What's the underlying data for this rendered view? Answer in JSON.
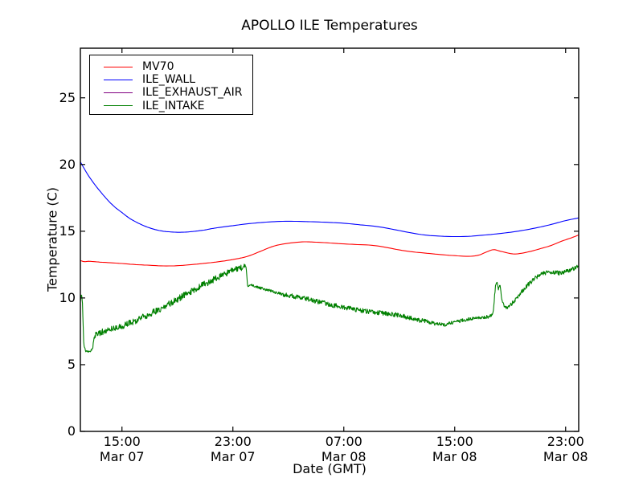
{
  "figure": {
    "background": "#ffffff",
    "axis_color": "#000000"
  },
  "chart_data": {
    "type": "line",
    "title": "APOLLO ILE Temperatures",
    "xlabel": "Date (GMT)",
    "ylabel": "Temperature (C)",
    "x_axis": {
      "unit": "hours-from-Mar-07-12:00-GMT",
      "range": [
        0,
        35.94
      ]
    },
    "y_axis": {
      "range": [
        0,
        28.7
      ],
      "grid": false
    },
    "yticks": {
      "values": [
        0,
        5,
        10,
        15,
        20,
        25
      ],
      "labels": [
        "0",
        "5",
        "10",
        "15",
        "20",
        "25"
      ]
    },
    "xticks": [
      {
        "t": 3,
        "time": "15:00",
        "date": "Mar 07"
      },
      {
        "t": 11,
        "time": "23:00",
        "date": "Mar 07"
      },
      {
        "t": 19,
        "time": "07:00",
        "date": "Mar 08"
      },
      {
        "t": 27,
        "time": "15:00",
        "date": "Mar 08"
      },
      {
        "t": 35,
        "time": "23:00",
        "date": "Mar 08"
      }
    ],
    "legend": {
      "position": "upper-left"
    },
    "series": [
      {
        "name": "MV70",
        "color": "#ff0000",
        "style": "smooth",
        "points": [
          [
            0,
            12.8
          ],
          [
            0.3,
            12.72
          ],
          [
            0.6,
            12.75
          ],
          [
            1,
            12.72
          ],
          [
            1.5,
            12.68
          ],
          [
            2,
            12.65
          ],
          [
            3,
            12.58
          ],
          [
            4,
            12.5
          ],
          [
            5,
            12.45
          ],
          [
            6,
            12.4
          ],
          [
            7,
            12.42
          ],
          [
            8,
            12.5
          ],
          [
            9,
            12.6
          ],
          [
            10,
            12.72
          ],
          [
            11,
            12.88
          ],
          [
            12,
            13.1
          ],
          [
            13,
            13.5
          ],
          [
            14,
            13.9
          ],
          [
            15,
            14.1
          ],
          [
            16,
            14.2
          ],
          [
            16.5,
            14.2
          ],
          [
            17,
            14.18
          ],
          [
            18,
            14.12
          ],
          [
            19,
            14.05
          ],
          [
            20,
            14.0
          ],
          [
            21,
            13.95
          ],
          [
            22,
            13.8
          ],
          [
            23,
            13.6
          ],
          [
            24,
            13.45
          ],
          [
            25,
            13.35
          ],
          [
            26,
            13.25
          ],
          [
            27,
            13.17
          ],
          [
            28,
            13.12
          ],
          [
            28.7,
            13.2
          ],
          [
            29.3,
            13.45
          ],
          [
            29.8,
            13.62
          ],
          [
            30.3,
            13.5
          ],
          [
            31.2,
            13.3
          ],
          [
            31.8,
            13.35
          ],
          [
            32.5,
            13.5
          ],
          [
            33.2,
            13.7
          ],
          [
            34,
            13.95
          ],
          [
            34.7,
            14.25
          ],
          [
            35.4,
            14.5
          ],
          [
            35.94,
            14.72
          ]
        ]
      },
      {
        "name": "ILE_WALL",
        "color": "#0000ff",
        "style": "smooth",
        "points": [
          [
            0,
            20.2
          ],
          [
            0.5,
            19.3
          ],
          [
            1,
            18.55
          ],
          [
            1.5,
            17.9
          ],
          [
            2,
            17.3
          ],
          [
            2.5,
            16.8
          ],
          [
            3,
            16.4
          ],
          [
            3.5,
            16.0
          ],
          [
            4,
            15.7
          ],
          [
            4.5,
            15.45
          ],
          [
            5,
            15.25
          ],
          [
            5.5,
            15.1
          ],
          [
            6,
            15.0
          ],
          [
            6.5,
            14.95
          ],
          [
            7,
            14.92
          ],
          [
            7.5,
            14.93
          ],
          [
            8,
            14.97
          ],
          [
            8.5,
            15.03
          ],
          [
            9,
            15.1
          ],
          [
            9.5,
            15.2
          ],
          [
            10,
            15.28
          ],
          [
            11,
            15.42
          ],
          [
            12,
            15.55
          ],
          [
            13,
            15.65
          ],
          [
            14,
            15.72
          ],
          [
            15,
            15.75
          ],
          [
            16,
            15.73
          ],
          [
            17,
            15.7
          ],
          [
            18,
            15.66
          ],
          [
            19,
            15.6
          ],
          [
            20,
            15.5
          ],
          [
            21,
            15.4
          ],
          [
            22,
            15.25
          ],
          [
            23,
            15.05
          ],
          [
            24,
            14.85
          ],
          [
            25,
            14.7
          ],
          [
            26,
            14.63
          ],
          [
            27,
            14.6
          ],
          [
            28,
            14.62
          ],
          [
            29,
            14.7
          ],
          [
            30,
            14.8
          ],
          [
            31,
            14.92
          ],
          [
            32,
            15.08
          ],
          [
            33,
            15.28
          ],
          [
            34,
            15.52
          ],
          [
            35,
            15.8
          ],
          [
            35.94,
            16.0
          ]
        ]
      },
      {
        "name": "ILE_EXHAUST_AIR",
        "color": "#800080",
        "style": "smooth",
        "points": []
      },
      {
        "name": "ILE_INTAKE",
        "color": "#008000",
        "style": "noisy",
        "noise_segments": [
          [
            0,
            1,
            0.07
          ],
          [
            1,
            11.9,
            0.24
          ],
          [
            11.9,
            14.5,
            0.1
          ],
          [
            14.5,
            25,
            0.17
          ],
          [
            25,
            29.7,
            0.13
          ],
          [
            29.7,
            31,
            0.1
          ],
          [
            31,
            35.95,
            0.16
          ]
        ],
        "points": [
          [
            0,
            9.8
          ],
          [
            0.08,
            10.3
          ],
          [
            0.15,
            9.6
          ],
          [
            0.25,
            6.4
          ],
          [
            0.4,
            6.0
          ],
          [
            0.7,
            5.95
          ],
          [
            0.9,
            6.3
          ],
          [
            1.0,
            7.2
          ],
          [
            1.5,
            7.45
          ],
          [
            2,
            7.6
          ],
          [
            2.5,
            7.7
          ],
          [
            3,
            7.9
          ],
          [
            3.5,
            8.1
          ],
          [
            4,
            8.3
          ],
          [
            4.5,
            8.55
          ],
          [
            5,
            8.8
          ],
          [
            5.5,
            9.05
          ],
          [
            6,
            9.3
          ],
          [
            6.5,
            9.6
          ],
          [
            7,
            9.9
          ],
          [
            7.5,
            10.2
          ],
          [
            8,
            10.5
          ],
          [
            8.5,
            10.8
          ],
          [
            9,
            11.05
          ],
          [
            9.5,
            11.3
          ],
          [
            10,
            11.6
          ],
          [
            10.5,
            11.85
          ],
          [
            11,
            12.05
          ],
          [
            11.5,
            12.25
          ],
          [
            11.95,
            12.4
          ],
          [
            12.05,
            10.95
          ],
          [
            12.5,
            10.9
          ],
          [
            13,
            10.75
          ],
          [
            13.5,
            10.6
          ],
          [
            14,
            10.45
          ],
          [
            14.5,
            10.3
          ],
          [
            15,
            10.2
          ],
          [
            15.5,
            10.1
          ],
          [
            16,
            10.0
          ],
          [
            16.5,
            9.9
          ],
          [
            17,
            9.75
          ],
          [
            17.5,
            9.65
          ],
          [
            18,
            9.5
          ],
          [
            18.5,
            9.4
          ],
          [
            19,
            9.3
          ],
          [
            19.5,
            9.2
          ],
          [
            20,
            9.1
          ],
          [
            21,
            8.95
          ],
          [
            22,
            8.85
          ],
          [
            23,
            8.7
          ],
          [
            24,
            8.45
          ],
          [
            25,
            8.2
          ],
          [
            25.7,
            8.05
          ],
          [
            26.3,
            8.0
          ],
          [
            27,
            8.2
          ],
          [
            27.5,
            8.3
          ],
          [
            28,
            8.4
          ],
          [
            28.7,
            8.5
          ],
          [
            29.4,
            8.6
          ],
          [
            29.75,
            8.75
          ],
          [
            29.85,
            9.8
          ],
          [
            29.95,
            11.0
          ],
          [
            30.05,
            11.2
          ],
          [
            30.15,
            10.6
          ],
          [
            30.25,
            11.0
          ],
          [
            30.4,
            9.9
          ],
          [
            30.6,
            9.3
          ],
          [
            30.8,
            9.25
          ],
          [
            31,
            9.45
          ],
          [
            31.3,
            9.8
          ],
          [
            31.7,
            10.3
          ],
          [
            32,
            10.7
          ],
          [
            32.3,
            11.0
          ],
          [
            32.7,
            11.4
          ],
          [
            33,
            11.6
          ],
          [
            33.4,
            11.85
          ],
          [
            33.8,
            11.95
          ],
          [
            34.2,
            11.9
          ],
          [
            34.6,
            11.85
          ],
          [
            35,
            12.0
          ],
          [
            35.4,
            12.1
          ],
          [
            35.7,
            12.3
          ],
          [
            35.94,
            12.45
          ]
        ]
      }
    ]
  }
}
